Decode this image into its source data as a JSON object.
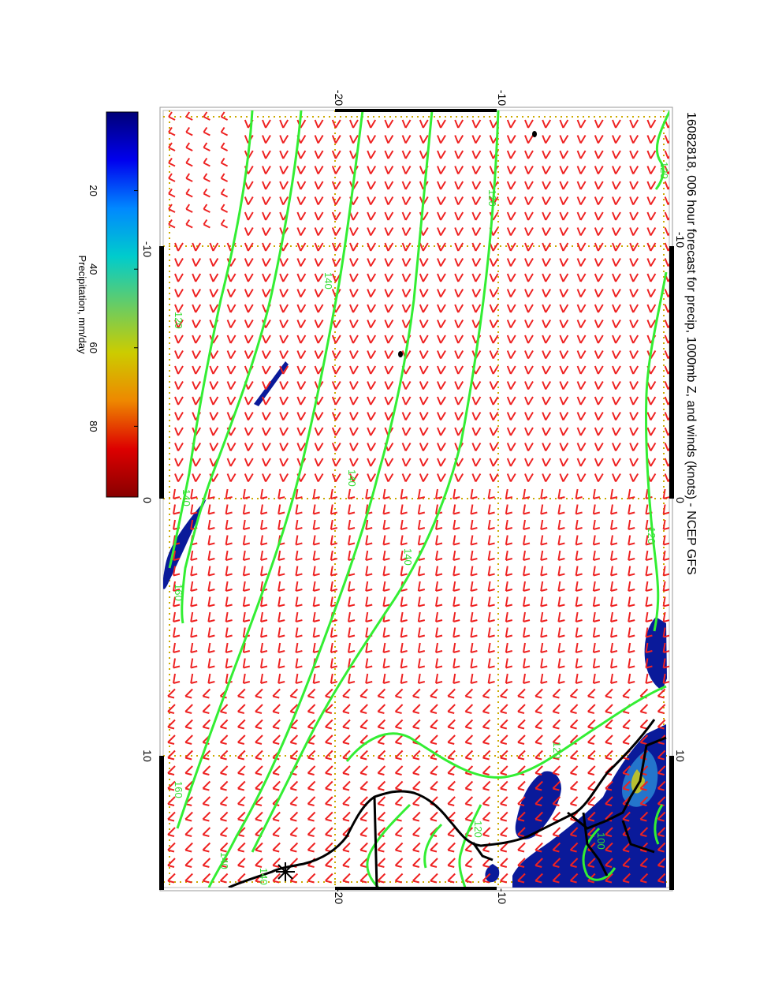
{
  "title": "16082818, 006 hour forecast for precip, 1000mb Z, and winds (knots) - NCEP GFS",
  "colorbar": {
    "label": "Precipitation, mm/day",
    "ticks": [
      "20",
      "40",
      "60",
      "80"
    ],
    "stops": [
      "#000077",
      "#0000ee",
      "#0088ff",
      "#00cccc",
      "#66cc66",
      "#cccc00",
      "#ee8800",
      "#dd0000",
      "#880000"
    ]
  },
  "axes": {
    "top_lat_labels": [
      "-20",
      "-10"
    ],
    "bottom_lat_labels": [
      "-20",
      "-10"
    ],
    "left_lon_labels": [
      "-10",
      "0",
      "10"
    ],
    "right_lon_labels": [
      "-10",
      "0",
      "10"
    ]
  },
  "contours": {
    "color": "#33ee33",
    "labels": [
      "120",
      "120",
      "120",
      "120",
      "140",
      "140",
      "140",
      "140",
      "160",
      "160",
      "140",
      "120",
      "100",
      "120",
      "140"
    ]
  },
  "colors": {
    "wind_barbs": "#ee2222",
    "grid": "#ccaa00",
    "coastline": "#000000",
    "precip": "#0a1a9a"
  }
}
